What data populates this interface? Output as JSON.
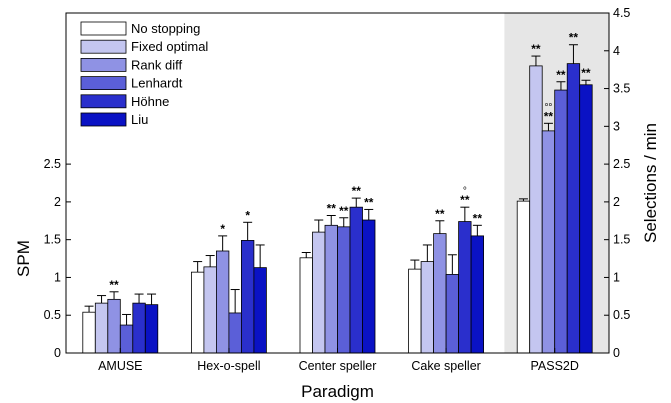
{
  "chart_data": {
    "type": "bar",
    "xlabel": "Paradigm",
    "ylabel": "SPM",
    "y2label": "Selections / min",
    "ylim": [
      0,
      4.5
    ],
    "y_ticks": [
      "0",
      "0.5",
      "1",
      "1.5",
      "2",
      "2.5"
    ],
    "y2_ticks": [
      "0",
      "0.5",
      "1",
      "1.5",
      "2",
      "2.5",
      "3",
      "3.5",
      "4",
      "4.5"
    ],
    "grid": false,
    "legend_position": "top-left",
    "shaded_categories": [
      "PASS2D"
    ],
    "shade_color": "#e6e6e6",
    "categories": [
      "AMUSE",
      "Hex-o-spell",
      "Center speller",
      "Cake speller",
      "PASS2D"
    ],
    "series": [
      {
        "name": "No stopping",
        "color": "#ffffff",
        "values": [
          0.54,
          1.07,
          1.26,
          1.11,
          2.01
        ],
        "errors": [
          0.08,
          0.14,
          0.07,
          0.12,
          0.03
        ],
        "annotations": [
          "",
          "",
          "",
          "",
          ""
        ]
      },
      {
        "name": "Fixed optimal",
        "color": "#c4c6f0",
        "values": [
          0.66,
          1.14,
          1.6,
          1.21,
          3.8
        ],
        "errors": [
          0.1,
          0.15,
          0.16,
          0.22,
          0.13
        ],
        "annotations": [
          "",
          "",
          "",
          "",
          "**"
        ]
      },
      {
        "name": "Rank diff",
        "color": "#8f92e4",
        "values": [
          0.71,
          1.35,
          1.69,
          1.58,
          2.94
        ],
        "errors": [
          0.1,
          0.2,
          0.13,
          0.17,
          0.1
        ],
        "annotations": [
          "**",
          "*",
          "**",
          "**",
          "**°°"
        ]
      },
      {
        "name": "Lenhardt",
        "color": "#5b5fd8",
        "values": [
          0.37,
          0.53,
          1.67,
          1.04,
          3.48
        ],
        "errors": [
          0.14,
          0.31,
          0.12,
          0.26,
          0.11
        ],
        "annotations": [
          "",
          "",
          "**",
          "",
          "**"
        ]
      },
      {
        "name": "Höhne",
        "color": "#2a2fcc",
        "values": [
          0.66,
          1.49,
          1.93,
          1.74,
          3.83
        ],
        "errors": [
          0.12,
          0.24,
          0.12,
          0.19,
          0.25
        ],
        "annotations": [
          "",
          "*",
          "**",
          "**°",
          "**"
        ]
      },
      {
        "name": "Liu",
        "color": "#0a12c4",
        "values": [
          0.64,
          1.13,
          1.76,
          1.55,
          3.55
        ],
        "errors": [
          0.14,
          0.3,
          0.14,
          0.14,
          0.06
        ],
        "annotations": [
          "",
          "",
          "**",
          "**",
          "**"
        ]
      }
    ]
  }
}
